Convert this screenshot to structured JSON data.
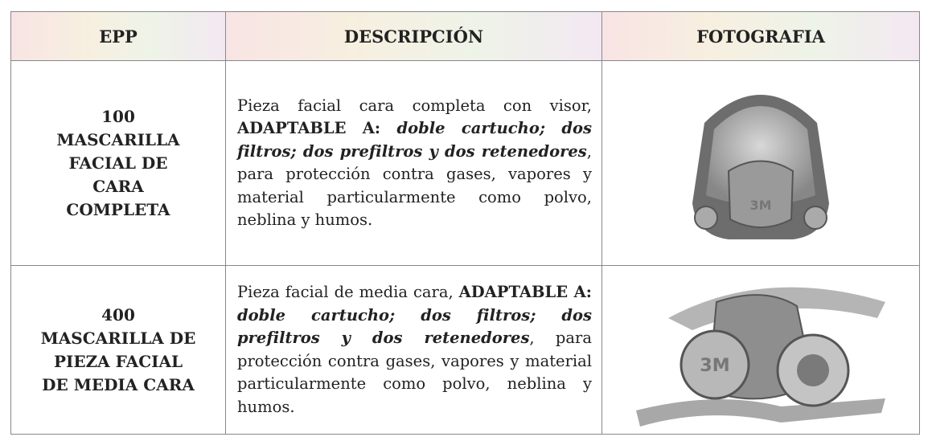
{
  "table": {
    "header": [
      "EPP",
      "DESCRIPCIÓN",
      "FOTOGRAFIA"
    ],
    "rows": [
      {
        "epp": [
          "100",
          "MASCARILLA",
          "FACIAL DE",
          "CARA",
          "COMPLETA"
        ],
        "description": [
          "Pieza facial cara completa con visor, ",
          "ADAPTABLE A: ",
          "doble cartucho; dos filtros; dos prefiltros y dos retenedores",
          ", para protección contra gases, vapores y material particularmente como polvo, neblina y humos."
        ]
      },
      {
        "epp": [
          "400",
          "MASCARILLA DE",
          "PIEZA FACIAL",
          "DE MEDIA CARA"
        ],
        "description": [
          "Pieza facial de media cara, ",
          "ADAPTABLE A: ",
          "doble cartucho; dos filtros; dos prefiltros y dos retenedores",
          ", para protección contra gases, vapores y material particularmente como polvo, neblina y humos."
        ]
      }
    ]
  }
}
